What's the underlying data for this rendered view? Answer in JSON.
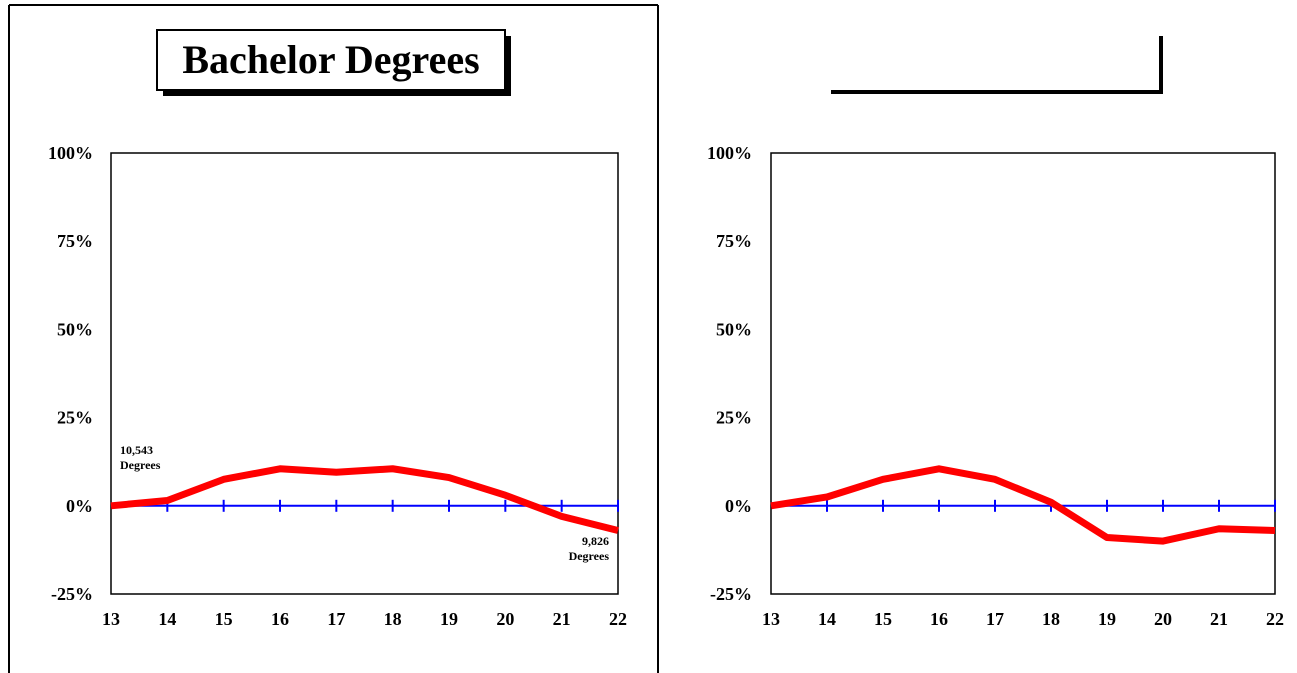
{
  "chart_data": [
    {
      "type": "line",
      "title": "Bachelor Degrees",
      "xlabel": "",
      "ylabel": "",
      "x": [
        "13",
        "14",
        "15",
        "16",
        "17",
        "18",
        "19",
        "20",
        "21",
        "22"
      ],
      "series": [
        {
          "values": [
            0,
            1.5,
            7.5,
            10.5,
            9.5,
            10.5,
            8,
            3,
            -3,
            -7
          ]
        }
      ],
      "ylim": [
        -25,
        100
      ],
      "yticks": [
        "100%",
        "75%",
        "50%",
        "25%",
        "0%",
        "-25%"
      ],
      "annotations": [
        {
          "line1": "10,543",
          "line2": "Degrees"
        },
        {
          "line1": "9,826",
          "line2": "Degrees"
        }
      ],
      "colors": {
        "line": "#ff0000",
        "baseline": "#0000ff",
        "axes": "#000000"
      }
    },
    {
      "type": "line",
      "title": "",
      "xlabel": "",
      "ylabel": "",
      "x": [
        "13",
        "14",
        "15",
        "16",
        "17",
        "18",
        "19",
        "20",
        "21",
        "22"
      ],
      "series": [
        {
          "values": [
            0,
            2.5,
            7.5,
            10.5,
            7.5,
            1,
            -9,
            -10,
            -6.5,
            -7
          ]
        }
      ],
      "ylim": [
        -25,
        100
      ],
      "yticks": [
        "100%",
        "75%",
        "50%",
        "25%",
        "0%",
        "-25%"
      ],
      "annotations": [],
      "colors": {
        "line": "#ff0000",
        "baseline": "#0000ff",
        "axes": "#000000"
      }
    }
  ]
}
